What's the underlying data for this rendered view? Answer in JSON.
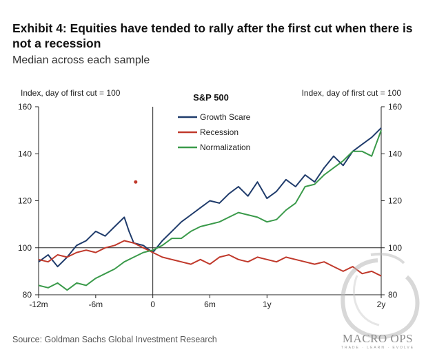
{
  "header": {
    "title": "Exhibit 4: Equities have tended to rally after the first cut when there is not a recession",
    "subtitle": "Median across each sample"
  },
  "footer": {
    "source": "Source: Goldman Sachs Global Investment Research"
  },
  "watermark": {
    "brand": "MACRO OPS",
    "tagline": "TRADE · LEARN · EVOLVE"
  },
  "colors": {
    "growth_scare": "#1f3b6b",
    "recession": "#c0392b",
    "normalization": "#3a9a4a",
    "axis": "#222222"
  },
  "chart_data": {
    "type": "line",
    "title": "S&P 500",
    "ylabel_left": "Index, day of first cut = 100",
    "ylabel_right": "Index, day of first cut = 100",
    "ylim": [
      80,
      160
    ],
    "yticks": [
      80,
      100,
      120,
      140,
      160
    ],
    "xlim": [
      -12,
      24
    ],
    "xticks": [
      {
        "value": -12,
        "label": "-12m"
      },
      {
        "value": -6,
        "label": "-6m"
      },
      {
        "value": 0,
        "label": "0"
      },
      {
        "value": 6,
        "label": "6m"
      },
      {
        "value": 12,
        "label": "1y"
      },
      {
        "value": 24,
        "label": "2y"
      }
    ],
    "reference_lines": {
      "x": 0,
      "y": 100
    },
    "legend_position": "top-center",
    "series": [
      {
        "name": "Growth Scare",
        "color": "#1f3b6b",
        "x": [
          -12,
          -11,
          -10,
          -9,
          -8,
          -7,
          -6,
          -5,
          -4,
          -3,
          -2.5,
          -2,
          -1,
          0,
          1,
          2,
          3,
          4,
          5,
          6,
          7,
          8,
          9,
          10,
          11,
          12,
          13,
          14,
          15,
          16,
          17,
          18,
          19,
          20,
          21,
          22,
          23,
          24
        ],
        "y": [
          94,
          97,
          92,
          96,
          101,
          103,
          107,
          105,
          109,
          113,
          107,
          102,
          101,
          98,
          103,
          107,
          111,
          114,
          117,
          120,
          119,
          123,
          126,
          122,
          128,
          121,
          124,
          129,
          126,
          131,
          128,
          134,
          139,
          135,
          141,
          144,
          147,
          151
        ]
      },
      {
        "name": "Recession",
        "color": "#c0392b",
        "x": [
          -12,
          -11,
          -10,
          -9,
          -8,
          -7,
          -6,
          -5,
          -4,
          -3,
          -2,
          -1,
          0,
          1,
          2,
          3,
          4,
          5,
          6,
          7,
          8,
          9,
          10,
          11,
          12,
          13,
          14,
          15,
          16,
          17,
          18,
          19,
          20,
          21,
          22,
          23,
          24
        ],
        "y": [
          95,
          94,
          97,
          96,
          98,
          99,
          98,
          100,
          101,
          103,
          102,
          100,
          98,
          96,
          95,
          94,
          93,
          95,
          93,
          96,
          97,
          95,
          94,
          96,
          95,
          94,
          96,
          95,
          94,
          93,
          94,
          92,
          90,
          92,
          89,
          90,
          88
        ]
      },
      {
        "name": "Normalization",
        "color": "#3a9a4a",
        "x": [
          -12,
          -11,
          -10,
          -9,
          -8,
          -7,
          -6,
          -5,
          -4,
          -3,
          -2,
          -1,
          0,
          1,
          2,
          3,
          4,
          5,
          6,
          7,
          8,
          9,
          10,
          11,
          12,
          13,
          14,
          15,
          16,
          17,
          18,
          19,
          20,
          21,
          22,
          23,
          24
        ],
        "y": [
          84,
          83,
          85,
          82,
          85,
          84,
          87,
          89,
          91,
          94,
          96,
          98,
          99,
          101,
          104,
          104,
          107,
          109,
          110,
          111,
          113,
          115,
          114,
          113,
          111,
          112,
          116,
          119,
          126,
          127,
          131,
          134,
          137,
          141,
          141,
          139,
          150
        ]
      }
    ],
    "annotations": [
      {
        "type": "dot",
        "x": -1.8,
        "y": 128,
        "color": "#c0392b"
      }
    ]
  }
}
